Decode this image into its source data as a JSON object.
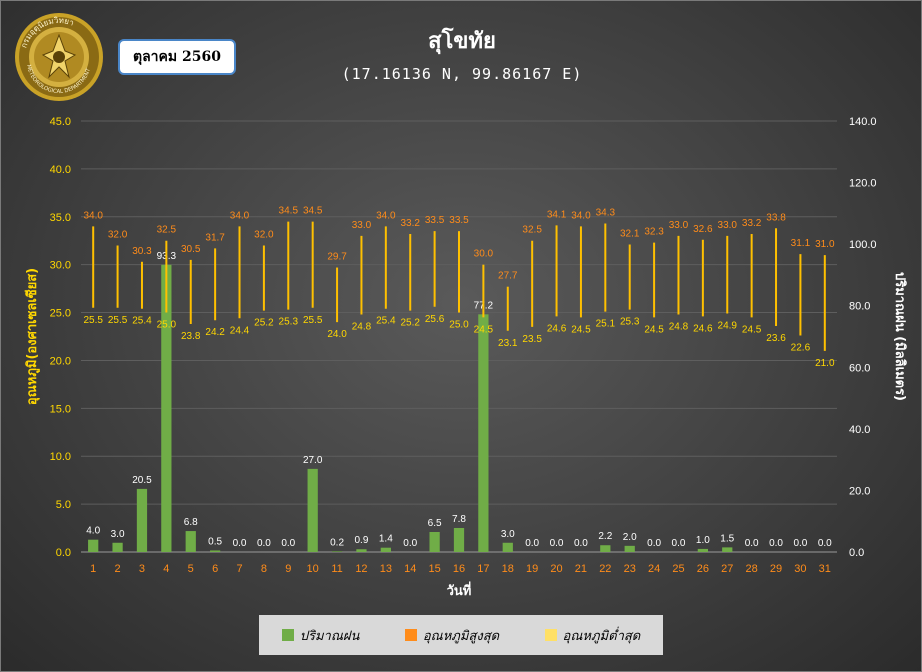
{
  "header": {
    "title": "สุโขทัย",
    "subtitle": "(17.16136 N, 99.86167 E)",
    "month": "ตุลาคม 2560",
    "logo_text": "กรมอุตุนิยมวิทยา METEOROLOGICAL DEPARTMENT"
  },
  "legend": {
    "rain": "ปริมาณฝน",
    "tmax": "อุณหภูมิสูงสุด",
    "tmin": "อุณหภูมิต่ำสุด"
  },
  "colors": {
    "rain": "#70ad47",
    "tmax": "#ff8c1a",
    "tmin": "#ffd700",
    "temp_axis": "#ffd700",
    "day_axis": "#ff8c1a",
    "rain_axis": "#ffffff"
  },
  "chart_data": {
    "type": "bar",
    "categories": [
      "1",
      "2",
      "3",
      "4",
      "5",
      "6",
      "7",
      "8",
      "9",
      "10",
      "11",
      "12",
      "13",
      "14",
      "15",
      "16",
      "17",
      "18",
      "19",
      "20",
      "21",
      "22",
      "23",
      "24",
      "25",
      "26",
      "27",
      "28",
      "29",
      "30",
      "31"
    ],
    "xlabel": "วันที่",
    "ylabel": "อุณหภูมิ(องศาเซลเซียส)",
    "y2label": "ปริมาณฝน (มิลลิเมตร)",
    "ylim": [
      0,
      45
    ],
    "yticks": [
      "0.0",
      "5.0",
      "10.0",
      "15.0",
      "20.0",
      "25.0",
      "30.0",
      "35.0",
      "40.0",
      "45.0"
    ],
    "y2lim": [
      0,
      140
    ],
    "y2ticks": [
      "0.0",
      "20.0",
      "40.0",
      "60.0",
      "80.0",
      "100.0",
      "120.0",
      "140.0"
    ],
    "grid": true,
    "legend_position": "bottom",
    "series": [
      {
        "name": "ปริมาณฝน",
        "axis": "right",
        "type": "bar",
        "values": [
          4.0,
          3.0,
          20.5,
          93.3,
          6.8,
          0.5,
          0.0,
          0.0,
          0.0,
          27.0,
          0.2,
          0.9,
          1.4,
          0.0,
          6.5,
          7.8,
          77.2,
          3.0,
          0.0,
          0.0,
          0.0,
          2.2,
          2.0,
          0.0,
          0.0,
          1.0,
          1.5,
          0.0,
          0.0,
          0.0,
          0.0
        ],
        "labels": [
          "4.0",
          "3.0",
          "20.5",
          "93.3",
          "6.8",
          "0.5",
          "0.0",
          "0.0",
          "0.0",
          "27.0",
          "0.2",
          "0.9",
          "1.4",
          "0.0",
          "6.5",
          "7.8",
          "77.2",
          "3.0",
          "0.0",
          "0.0",
          "0.0",
          "2.2",
          "2.0",
          "0.0",
          "0.0",
          "1.0",
          "1.5",
          "0.0",
          "0.0",
          "0.0",
          "0.0"
        ]
      },
      {
        "name": "อุณหภูมิสูงสุด",
        "axis": "left",
        "type": "range-high",
        "values": [
          34.0,
          32.0,
          30.3,
          32.5,
          30.5,
          31.7,
          34.0,
          32.0,
          34.5,
          34.5,
          29.7,
          33.0,
          34.0,
          33.2,
          33.5,
          33.5,
          30.0,
          27.7,
          32.5,
          34.1,
          34.0,
          34.3,
          32.1,
          32.3,
          33.0,
          32.6,
          33.0,
          33.2,
          33.8,
          31.1,
          31.0
        ],
        "labels": [
          "34.0",
          "32.0",
          "30.3",
          "32.5",
          "30.5",
          "31.7",
          "34.0",
          "32.0",
          "34.5",
          "34.5",
          "29.7",
          "33.0",
          "34.0",
          "33.2",
          "33.5",
          "33.5",
          "30.0",
          "27.7",
          "32.5",
          "34.1",
          "34.0",
          "34.3",
          "32.1",
          "32.3",
          "33.0",
          "32.6",
          "33.0",
          "33.2",
          "33.8",
          "31.1",
          "31.0"
        ]
      },
      {
        "name": "อุณหภูมิต่ำสุด",
        "axis": "left",
        "type": "range-low",
        "values": [
          25.5,
          25.5,
          25.4,
          25.0,
          23.8,
          24.2,
          24.4,
          25.2,
          25.3,
          25.5,
          24.0,
          24.8,
          25.4,
          25.2,
          25.6,
          25.0,
          24.5,
          23.1,
          23.5,
          24.6,
          24.5,
          25.1,
          25.3,
          24.5,
          24.8,
          24.6,
          24.9,
          24.5,
          23.6,
          22.6,
          21.0
        ],
        "labels": [
          "25.5",
          "25.5",
          "25.4",
          "25.0",
          "23.8",
          "24.2",
          "24.4",
          "25.2",
          "25.3",
          "25.5",
          "24.0",
          "24.8",
          "25.4",
          "25.2",
          "25.6",
          "25.0",
          "24.5",
          "23.1",
          "23.5",
          "24.6",
          "24.5",
          "25.1",
          "25.3",
          "24.5",
          "24.8",
          "24.6",
          "24.9",
          "24.5",
          "23.6",
          "22.6",
          "21.0"
        ]
      }
    ]
  }
}
